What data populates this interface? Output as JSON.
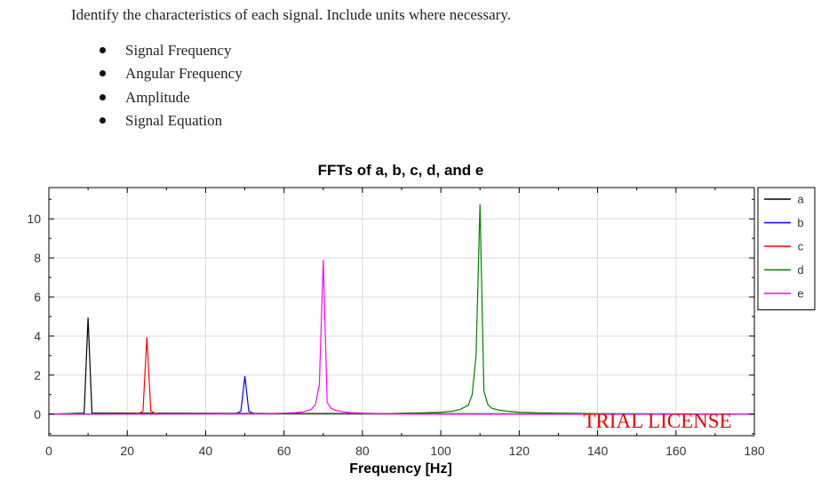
{
  "instructions": {
    "prompt": "Identify the characteristics of each signal. Include units where necessary.",
    "bullets": [
      "Signal Frequency",
      "Angular Frequency",
      "Amplitude",
      "Signal Equation"
    ]
  },
  "chart_data": {
    "type": "line",
    "title": "FFTs of a, b, c, d, and e",
    "xlabel": "Frequency [Hz]",
    "ylabel": "",
    "xlim": [
      0,
      180
    ],
    "ylim": [
      -1.1,
      11.6
    ],
    "xticks": [
      0,
      20,
      40,
      60,
      80,
      100,
      120,
      140,
      160,
      180
    ],
    "yticks": [
      0,
      2,
      4,
      6,
      8,
      10
    ],
    "grid": true,
    "legend_position": "outside-right-top",
    "watermark": "TRIAL LICENSE",
    "series": [
      {
        "name": "a",
        "color": "#000000",
        "x": [
          0,
          9,
          10,
          11,
          180
        ],
        "values": [
          0,
          0.05,
          4.95,
          0.05,
          0
        ]
      },
      {
        "name": "b",
        "color": "#0000ff",
        "x": [
          0,
          47,
          48,
          49,
          50,
          51,
          52,
          53,
          180
        ],
        "values": [
          0,
          0.02,
          0.05,
          0.15,
          1.95,
          0.15,
          0.05,
          0.02,
          0
        ]
      },
      {
        "name": "c",
        "color": "#ff0000",
        "x": [
          0,
          22,
          23,
          24,
          25,
          26,
          27,
          28,
          180
        ],
        "values": [
          0,
          0.02,
          0.05,
          0.15,
          3.95,
          0.15,
          0.05,
          0.02,
          0
        ]
      },
      {
        "name": "d",
        "color": "#008000",
        "x": [
          0,
          85,
          90,
          95,
          100,
          103,
          105,
          107,
          108,
          109,
          110,
          111,
          112,
          113,
          115,
          117,
          120,
          125,
          130,
          140,
          180
        ],
        "values": [
          0,
          0.02,
          0.05,
          0.07,
          0.1,
          0.15,
          0.25,
          0.45,
          1.0,
          3.0,
          10.75,
          1.2,
          0.5,
          0.3,
          0.2,
          0.15,
          0.1,
          0.07,
          0.05,
          0.03,
          0
        ]
      },
      {
        "name": "e",
        "color": "#ff00ff",
        "x": [
          0,
          55,
          60,
          63,
          65,
          67,
          68,
          69,
          70,
          71,
          72,
          73,
          75,
          77,
          80,
          85,
          95,
          180
        ],
        "values": [
          0,
          0.02,
          0.05,
          0.08,
          0.12,
          0.25,
          0.5,
          1.5,
          7.9,
          0.6,
          0.3,
          0.2,
          0.12,
          0.08,
          0.05,
          0.03,
          0.01,
          0
        ]
      }
    ]
  }
}
